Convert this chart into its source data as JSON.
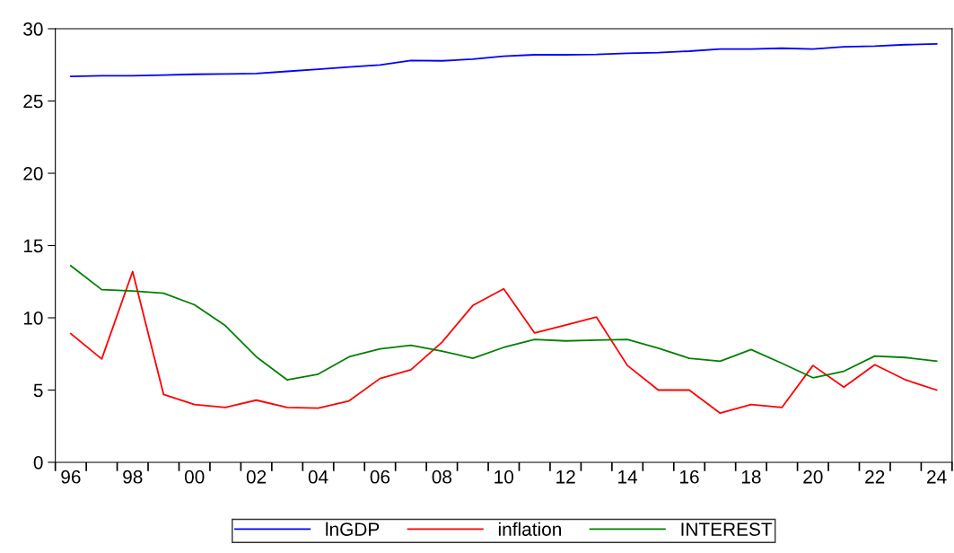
{
  "chart_data": {
    "type": "line",
    "categories": [
      "96",
      null,
      "98",
      null,
      "00",
      null,
      "02",
      null,
      "04",
      null,
      "06",
      null,
      "08",
      null,
      "10",
      null,
      "12",
      null,
      "14",
      null,
      "16",
      null,
      "18",
      null,
      "20",
      null,
      "22",
      null,
      "24"
    ],
    "series": [
      {
        "name": "lnGDP",
        "color": "#0000ff",
        "values": [
          26.7,
          26.75,
          26.75,
          26.8,
          26.85,
          26.87,
          26.9,
          27.05,
          27.2,
          27.35,
          27.5,
          27.8,
          27.78,
          27.9,
          28.1,
          28.2,
          28.2,
          28.22,
          28.3,
          28.35,
          28.45,
          28.6,
          28.6,
          28.65,
          28.6,
          28.75,
          28.8,
          28.9,
          28.95
        ]
      },
      {
        "name": "inflation",
        "color": "#ff0000",
        "values": [
          8.9,
          7.15,
          13.2,
          4.7,
          4.0,
          3.8,
          4.3,
          3.8,
          3.75,
          4.25,
          5.8,
          6.4,
          8.3,
          10.85,
          12.0,
          8.95,
          9.5,
          10.05,
          6.7,
          5.0,
          5.0,
          3.4,
          4.0,
          3.8,
          6.7,
          5.2,
          6.75,
          5.7,
          5.0
        ]
      },
      {
        "name": "INTEREST",
        "color": "#008000",
        "values": [
          13.6,
          11.95,
          11.85,
          11.7,
          10.9,
          9.45,
          7.3,
          5.7,
          6.1,
          7.3,
          7.85,
          8.1,
          7.7,
          7.2,
          7.95,
          8.5,
          8.4,
          8.45,
          8.5,
          7.9,
          7.2,
          7.0,
          7.8,
          6.85,
          5.85,
          6.3,
          7.35,
          7.25,
          7.0
        ]
      }
    ],
    "ylim": [
      0,
      30
    ],
    "yticks": [
      0,
      5,
      10,
      15,
      20,
      25,
      30
    ],
    "grid": false,
    "legend": "bottom",
    "marker": "none",
    "line_style": "solid"
  }
}
